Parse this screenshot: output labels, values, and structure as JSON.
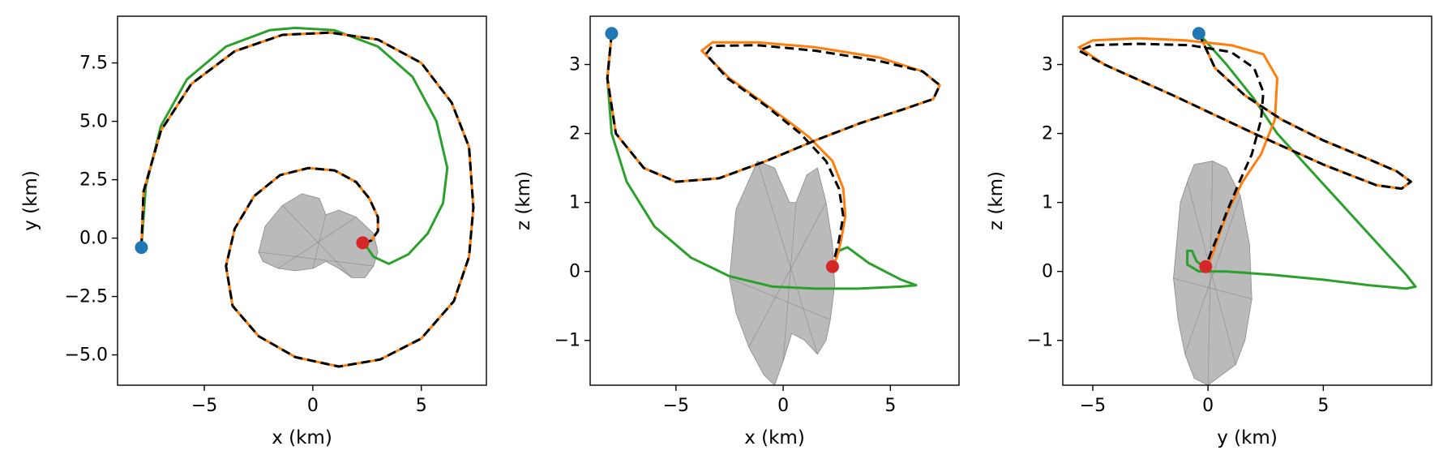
{
  "chart_data": [
    {
      "type": "line",
      "xlabel": "x (km)",
      "ylabel": "y (km)",
      "xlim": [
        -9,
        8
      ],
      "ylim": [
        -6.3,
        9.5
      ],
      "xticks": [
        -5,
        0,
        5
      ],
      "yticks": [
        -5.0,
        -2.5,
        0.0,
        2.5,
        5.0,
        7.5
      ],
      "xtick_labels": [
        "−5",
        "0",
        "5"
      ],
      "ytick_labels": [
        "−5.0",
        "−2.5",
        "0.0",
        "2.5",
        "5.0",
        "7.5"
      ],
      "grid": false,
      "series": [
        {
          "color": "#2ca02c",
          "style": "solid",
          "x": [
            -7.9,
            -7.7,
            -7.0,
            -5.8,
            -4.0,
            -2.0,
            -0.8,
            1.0,
            3.0,
            4.6,
            5.7,
            6.2,
            6.0,
            5.3,
            4.4,
            3.5,
            2.8,
            2.5,
            2.3
          ],
          "y": [
            -0.4,
            2.2,
            4.8,
            6.8,
            8.2,
            8.9,
            9.0,
            8.9,
            8.2,
            6.9,
            5.0,
            3.0,
            1.5,
            0.2,
            -0.7,
            -1.1,
            -0.8,
            -0.4,
            -0.2
          ]
        },
        {
          "color": "#ff7f0e",
          "style": "solid",
          "x": [
            -7.9,
            -7.8,
            -7.0,
            -5.6,
            -3.6,
            -1.4,
            0.8,
            3.0,
            5.0,
            6.4,
            7.2,
            7.4,
            7.2,
            6.5,
            5.0,
            3.1,
            1.2,
            -0.8,
            -2.5,
            -3.7,
            -4.0,
            -3.6,
            -2.7,
            -1.5,
            -0.2,
            1.0,
            2.0,
            2.6,
            3.0,
            3.0,
            2.7,
            2.4,
            2.3
          ],
          "y": [
            -0.4,
            2.0,
            4.6,
            6.6,
            8.0,
            8.7,
            8.8,
            8.5,
            7.5,
            5.8,
            3.9,
            1.3,
            -0.8,
            -2.7,
            -4.3,
            -5.2,
            -5.5,
            -5.1,
            -4.2,
            -2.9,
            -1.2,
            0.4,
            1.8,
            2.7,
            3.0,
            2.9,
            2.4,
            1.7,
            0.9,
            0.3,
            -0.1,
            -0.2,
            -0.2
          ]
        },
        {
          "color": "#000000",
          "style": "dashed",
          "x": [
            -7.9,
            -7.8,
            -7.0,
            -5.6,
            -3.6,
            -1.4,
            0.8,
            3.0,
            5.0,
            6.4,
            7.2,
            7.4,
            7.2,
            6.5,
            5.0,
            3.1,
            1.2,
            -0.8,
            -2.5,
            -3.7,
            -4.0,
            -3.6,
            -2.7,
            -1.5,
            -0.2,
            1.0,
            2.0,
            2.6,
            3.0,
            3.0,
            2.7,
            2.4,
            2.3
          ],
          "y": [
            -0.4,
            2.0,
            4.6,
            6.6,
            8.0,
            8.7,
            8.8,
            8.5,
            7.5,
            5.8,
            3.9,
            1.3,
            -0.8,
            -2.7,
            -4.3,
            -5.2,
            -5.5,
            -5.1,
            -4.2,
            -2.9,
            -1.2,
            0.4,
            1.8,
            2.7,
            3.0,
            2.9,
            2.4,
            1.7,
            0.9,
            0.3,
            -0.1,
            -0.2,
            -0.2
          ]
        }
      ],
      "points": [
        {
          "x": -7.9,
          "y": -0.4,
          "color": "#1f77b4"
        },
        {
          "x": 2.3,
          "y": -0.2,
          "color": "#d62728"
        }
      ],
      "shape": {
        "color": "#a0a0a0",
        "x": [
          -2.5,
          -2.2,
          -1.4,
          -0.5,
          0.3,
          0.6,
          1.2,
          2.0,
          2.8,
          3.0,
          2.8,
          2.4,
          1.8,
          1.2,
          0.6,
          0.0,
          -0.8,
          -1.6,
          -2.3,
          -2.5
        ],
        "y": [
          -0.6,
          0.5,
          1.4,
          1.9,
          1.7,
          1.0,
          1.2,
          0.9,
          0.2,
          -0.6,
          -1.2,
          -1.7,
          -1.7,
          -1.3,
          -1.0,
          -1.3,
          -1.4,
          -1.3,
          -1.0,
          -0.6
        ]
      }
    },
    {
      "type": "line",
      "xlabel": "x (km)",
      "ylabel": "z (km)",
      "xlim": [
        -9,
        8.2
      ],
      "ylim": [
        -1.65,
        3.7
      ],
      "xticks": [
        -5,
        0,
        5
      ],
      "yticks": [
        -1,
        0,
        1,
        2,
        3
      ],
      "xtick_labels": [
        "−5",
        "0",
        "5"
      ],
      "ytick_labels": [
        "−1",
        "0",
        "1",
        "2",
        "3"
      ],
      "grid": false,
      "series": [
        {
          "color": "#2ca02c",
          "style": "solid",
          "x": [
            -8.0,
            -8.2,
            -8.0,
            -7.3,
            -6.0,
            -4.3,
            -2.5,
            -0.5,
            1.5,
            3.5,
            5.5,
            6.2,
            5.5,
            4.0,
            3.0,
            2.6,
            2.3
          ],
          "y": [
            3.45,
            2.8,
            2.0,
            1.3,
            0.65,
            0.2,
            -0.07,
            -0.22,
            -0.25,
            -0.25,
            -0.22,
            -0.2,
            -0.12,
            0.12,
            0.35,
            0.3,
            0.05
          ]
        },
        {
          "color": "#ff7f0e",
          "style": "solid",
          "x": [
            -8.0,
            -8.2,
            -7.8,
            -6.5,
            -5.0,
            -3.0,
            -0.8,
            1.5,
            3.6,
            5.6,
            7.0,
            7.3,
            6.5,
            4.5,
            1.5,
            -1.2,
            -3.3,
            -3.8,
            -2.5,
            -0.5,
            1.2,
            2.3,
            2.8,
            2.9,
            2.7,
            2.5,
            2.3
          ],
          "y": [
            3.45,
            2.8,
            2.0,
            1.5,
            1.3,
            1.35,
            1.6,
            1.9,
            2.15,
            2.35,
            2.5,
            2.7,
            2.9,
            3.1,
            3.25,
            3.32,
            3.32,
            3.2,
            2.8,
            2.35,
            1.95,
            1.6,
            1.2,
            0.8,
            0.45,
            0.2,
            0.07
          ]
        },
        {
          "color": "#000000",
          "style": "dashed",
          "x": [
            -8.0,
            -8.2,
            -7.8,
            -6.5,
            -5.0,
            -3.0,
            -0.8,
            1.5,
            3.6,
            5.6,
            7.0,
            7.3,
            6.5,
            4.5,
            1.5,
            -1.2,
            -3.3,
            -3.6,
            -2.6,
            -0.8,
            0.8,
            2.0,
            2.6,
            2.8,
            2.6,
            2.4,
            2.3
          ],
          "y": [
            3.45,
            2.8,
            2.0,
            1.5,
            1.3,
            1.35,
            1.6,
            1.9,
            2.15,
            2.35,
            2.5,
            2.7,
            2.9,
            3.05,
            3.2,
            3.28,
            3.27,
            3.15,
            2.8,
            2.4,
            2.0,
            1.6,
            1.2,
            0.8,
            0.45,
            0.2,
            0.07
          ]
        }
      ],
      "points": [
        {
          "x": -8.0,
          "y": 3.45,
          "color": "#1f77b4"
        },
        {
          "x": 2.3,
          "y": 0.07,
          "color": "#d62728"
        }
      ],
      "shape": {
        "color": "#a0a0a0",
        "x": [
          -2.5,
          -2.2,
          -1.2,
          -0.4,
          0.3,
          0.6,
          1.1,
          1.6,
          2.0,
          2.3,
          2.4,
          2.2,
          2.0,
          1.6,
          1.0,
          0.4,
          0.0,
          -0.4,
          -0.9,
          -1.6,
          -2.2,
          -2.5
        ],
        "y": [
          -0.1,
          0.9,
          1.6,
          1.5,
          1.0,
          1.0,
          1.4,
          1.5,
          1.0,
          0.4,
          -0.2,
          -0.7,
          -1.0,
          -1.2,
          -1.0,
          -0.9,
          -1.3,
          -1.65,
          -1.5,
          -1.1,
          -0.6,
          -0.1
        ]
      }
    },
    {
      "type": "line",
      "xlabel": "y (km)",
      "ylabel": "z (km)",
      "xlim": [
        -6.3,
        9.7
      ],
      "ylim": [
        -1.65,
        3.7
      ],
      "xticks": [
        -5,
        0,
        5
      ],
      "yticks": [
        -1,
        0,
        1,
        2,
        3
      ],
      "xtick_labels": [
        "−5",
        "0",
        "5"
      ],
      "ytick_labels": [
        "−1",
        "0",
        "1",
        "2",
        "3"
      ],
      "grid": false,
      "series": [
        {
          "color": "#2ca02c",
          "style": "solid",
          "x": [
            -0.4,
            0.8,
            2.0,
            3.0,
            4.5,
            6.0,
            7.5,
            8.6,
            9.0,
            8.6,
            7.0,
            5.0,
            2.8,
            0.8,
            -0.4,
            -0.9,
            -0.9,
            -0.7,
            -0.5,
            -0.2
          ],
          "y": [
            3.45,
            3.0,
            2.5,
            2.0,
            1.45,
            0.9,
            0.35,
            -0.05,
            -0.22,
            -0.25,
            -0.2,
            -0.12,
            -0.05,
            0.0,
            0.0,
            0.1,
            0.3,
            0.3,
            0.15,
            0.07
          ]
        },
        {
          "color": "#ff7f0e",
          "style": "solid",
          "x": [
            -0.4,
            0.3,
            1.6,
            3.2,
            5.0,
            6.8,
            8.2,
            8.8,
            8.4,
            7.3,
            5.0,
            2.0,
            -1.5,
            -4.5,
            -5.6,
            -5.0,
            -3.0,
            -1.0,
            1.0,
            2.4,
            3.0,
            2.9,
            2.3,
            1.5,
            0.9,
            0.5,
            0.2,
            0.0,
            -0.1
          ],
          "y": [
            3.45,
            2.95,
            2.55,
            2.2,
            1.9,
            1.65,
            1.45,
            1.3,
            1.2,
            1.25,
            1.55,
            2.0,
            2.55,
            3.0,
            3.25,
            3.35,
            3.38,
            3.35,
            3.28,
            3.15,
            2.8,
            2.2,
            1.7,
            1.3,
            0.9,
            0.55,
            0.25,
            0.1,
            0.07
          ]
        },
        {
          "color": "#000000",
          "style": "dashed",
          "x": [
            -0.4,
            0.3,
            1.6,
            3.2,
            5.0,
            6.8,
            8.2,
            8.8,
            8.4,
            7.3,
            5.0,
            2.0,
            -1.5,
            -4.5,
            -5.6,
            -5.0,
            -3.0,
            -0.8,
            1.0,
            2.0,
            2.4,
            2.3,
            1.9,
            1.3,
            0.8,
            0.4,
            0.1,
            -0.05,
            -0.1
          ],
          "y": [
            3.45,
            2.95,
            2.55,
            2.2,
            1.9,
            1.65,
            1.45,
            1.3,
            1.2,
            1.25,
            1.55,
            2.0,
            2.55,
            3.0,
            3.2,
            3.28,
            3.3,
            3.28,
            3.18,
            2.95,
            2.6,
            2.2,
            1.7,
            1.25,
            0.85,
            0.5,
            0.25,
            0.1,
            0.07
          ]
        }
      ],
      "points": [
        {
          "x": -0.4,
          "y": 3.45,
          "color": "#1f77b4"
        },
        {
          "x": -0.1,
          "y": 0.07,
          "color": "#d62728"
        }
      ],
      "shape": {
        "color": "#a0a0a0",
        "x": [
          -1.5,
          -1.2,
          -0.9,
          -0.6,
          0.2,
          0.8,
          1.4,
          1.8,
          1.9,
          1.6,
          1.2,
          0.6,
          0.0,
          -0.6,
          -1.0,
          -1.3,
          -1.5
        ],
        "y": [
          -0.1,
          1.0,
          1.3,
          1.55,
          1.6,
          1.5,
          1.1,
          0.4,
          -0.4,
          -1.0,
          -1.35,
          -1.5,
          -1.65,
          -1.55,
          -1.2,
          -0.7,
          -0.1
        ]
      }
    }
  ]
}
